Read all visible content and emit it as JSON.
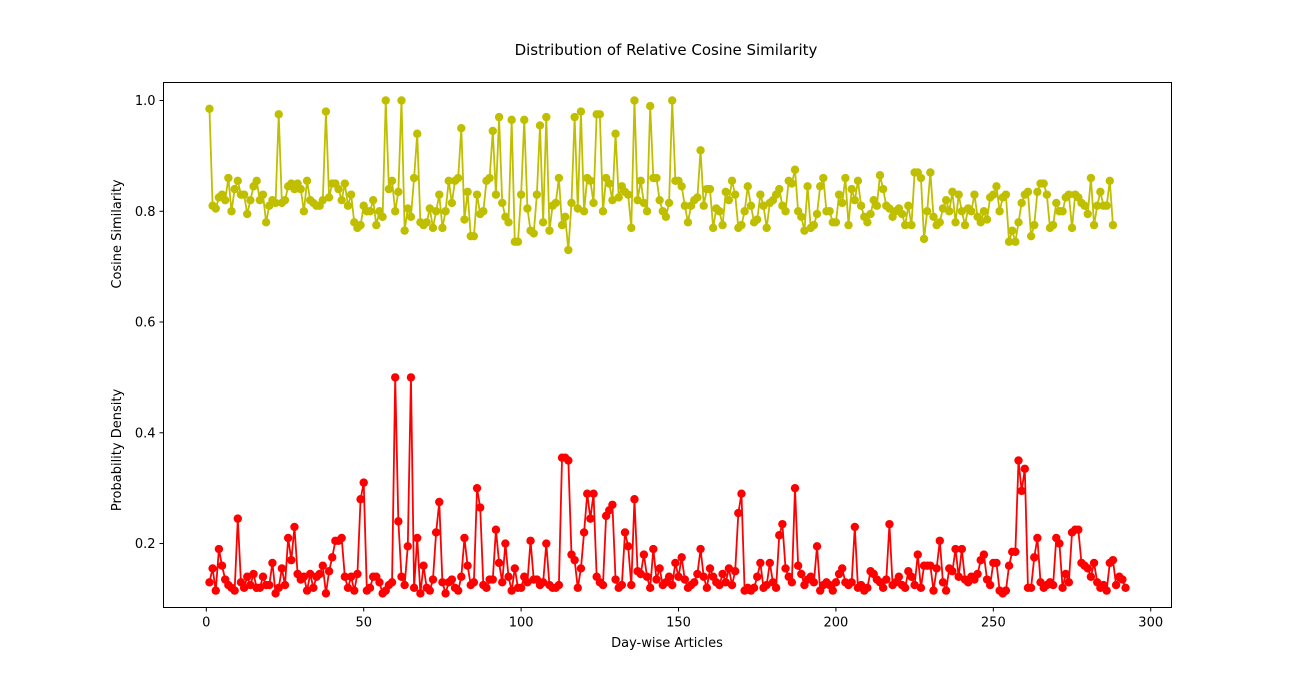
{
  "chart_data": {
    "type": "line",
    "title": "Distribution of Relative Cosine Similarity",
    "xlabel": "Day-wise Articles",
    "ylabel_upper": "Cosine Similarity",
    "ylabel_lower": "Probability Density",
    "xlim": [
      -13.6,
      306.6
    ],
    "ylim": [
      0.0845,
      1.0325
    ],
    "xticks": [
      {
        "value": 0,
        "label": "0"
      },
      {
        "value": 50,
        "label": "50"
      },
      {
        "value": 100,
        "label": "100"
      },
      {
        "value": 150,
        "label": "150"
      },
      {
        "value": 200,
        "label": "200"
      },
      {
        "value": 250,
        "label": "250"
      },
      {
        "value": 300,
        "label": "300"
      }
    ],
    "yticks": [
      {
        "value": 0.2,
        "label": "0.2"
      },
      {
        "value": 0.4,
        "label": "0.4"
      },
      {
        "value": 0.6,
        "label": "0.6"
      },
      {
        "value": 0.8,
        "label": "0.8"
      },
      {
        "value": 1.0,
        "label": "1.0"
      }
    ],
    "grid": false,
    "series": [
      {
        "role": "cosine",
        "color": "#bfbf00",
        "marker": "circle",
        "x_start": 1,
        "values": [
          0.985,
          0.81,
          0.805,
          0.825,
          0.83,
          0.82,
          0.86,
          0.8,
          0.84,
          0.855,
          0.83,
          0.83,
          0.795,
          0.82,
          0.845,
          0.855,
          0.82,
          0.83,
          0.78,
          0.81,
          0.82,
          0.815,
          0.975,
          0.815,
          0.82,
          0.845,
          0.85,
          0.84,
          0.85,
          0.84,
          0.8,
          0.855,
          0.82,
          0.815,
          0.81,
          0.81,
          0.82,
          0.98,
          0.825,
          0.85,
          0.85,
          0.84,
          0.82,
          0.85,
          0.81,
          0.83,
          0.78,
          0.77,
          0.775,
          0.81,
          0.8,
          0.8,
          0.82,
          0.775,
          0.8,
          0.79,
          1.0,
          0.84,
          0.855,
          0.8,
          0.835,
          1.0,
          0.765,
          0.805,
          0.79,
          0.86,
          0.94,
          0.78,
          0.775,
          0.78,
          0.805,
          0.77,
          0.8,
          0.83,
          0.77,
          0.8,
          0.855,
          0.815,
          0.855,
          0.86,
          0.95,
          0.785,
          0.835,
          0.755,
          0.755,
          0.83,
          0.795,
          0.8,
          0.855,
          0.86,
          0.945,
          0.83,
          0.97,
          0.815,
          0.79,
          0.78,
          0.965,
          0.745,
          0.745,
          0.83,
          0.965,
          0.805,
          0.765,
          0.76,
          0.83,
          0.955,
          0.78,
          0.97,
          0.765,
          0.81,
          0.815,
          0.86,
          0.775,
          0.79,
          0.73,
          0.815,
          0.97,
          0.805,
          0.98,
          0.8,
          0.86,
          0.855,
          0.815,
          0.975,
          0.975,
          0.8,
          0.86,
          0.85,
          0.82,
          0.94,
          0.825,
          0.845,
          0.835,
          0.83,
          0.77,
          1.0,
          0.82,
          0.855,
          0.815,
          0.8,
          0.99,
          0.86,
          0.86,
          0.82,
          0.8,
          0.79,
          0.815,
          1.0,
          0.855,
          0.855,
          0.845,
          0.81,
          0.78,
          0.81,
          0.82,
          0.825,
          0.91,
          0.81,
          0.84,
          0.84,
          0.77,
          0.805,
          0.8,
          0.775,
          0.835,
          0.82,
          0.855,
          0.83,
          0.77,
          0.775,
          0.8,
          0.845,
          0.81,
          0.78,
          0.785,
          0.83,
          0.81,
          0.77,
          0.815,
          0.82,
          0.83,
          0.84,
          0.81,
          0.8,
          0.855,
          0.85,
          0.875,
          0.8,
          0.79,
          0.765,
          0.845,
          0.77,
          0.775,
          0.795,
          0.845,
          0.86,
          0.8,
          0.8,
          0.78,
          0.78,
          0.83,
          0.815,
          0.86,
          0.775,
          0.84,
          0.82,
          0.855,
          0.81,
          0.79,
          0.78,
          0.795,
          0.82,
          0.81,
          0.865,
          0.84,
          0.81,
          0.805,
          0.79,
          0.8,
          0.805,
          0.795,
          0.775,
          0.81,
          0.775,
          0.87,
          0.87,
          0.86,
          0.75,
          0.8,
          0.87,
          0.79,
          0.775,
          0.78,
          0.805,
          0.82,
          0.8,
          0.835,
          0.78,
          0.83,
          0.8,
          0.775,
          0.805,
          0.8,
          0.83,
          0.79,
          0.78,
          0.8,
          0.785,
          0.825,
          0.83,
          0.845,
          0.8,
          0.825,
          0.83,
          0.745,
          0.765,
          0.745,
          0.78,
          0.815,
          0.83,
          0.835,
          0.755,
          0.775,
          0.835,
          0.85,
          0.85,
          0.83,
          0.77,
          0.775,
          0.815,
          0.8,
          0.8,
          0.825,
          0.83,
          0.77,
          0.83,
          0.825,
          0.815,
          0.81,
          0.795,
          0.86,
          0.775,
          0.81,
          0.835,
          0.81,
          0.81,
          0.855,
          0.775
        ]
      },
      {
        "role": "density",
        "color": "#ff0000",
        "marker": "circle",
        "x_start": 1,
        "values": [
          0.13,
          0.155,
          0.115,
          0.19,
          0.16,
          0.135,
          0.125,
          0.12,
          0.115,
          0.245,
          0.13,
          0.12,
          0.14,
          0.125,
          0.145,
          0.12,
          0.12,
          0.14,
          0.125,
          0.125,
          0.165,
          0.11,
          0.12,
          0.155,
          0.125,
          0.21,
          0.17,
          0.23,
          0.145,
          0.135,
          0.14,
          0.115,
          0.145,
          0.12,
          0.14,
          0.145,
          0.16,
          0.11,
          0.15,
          0.175,
          0.205,
          0.205,
          0.21,
          0.14,
          0.12,
          0.14,
          0.115,
          0.145,
          0.28,
          0.31,
          0.115,
          0.12,
          0.14,
          0.14,
          0.13,
          0.11,
          0.115,
          0.125,
          0.13,
          0.5,
          0.24,
          0.14,
          0.125,
          0.195,
          0.5,
          0.12,
          0.21,
          0.11,
          0.16,
          0.12,
          0.115,
          0.135,
          0.22,
          0.275,
          0.13,
          0.11,
          0.13,
          0.135,
          0.12,
          0.115,
          0.14,
          0.21,
          0.16,
          0.125,
          0.13,
          0.3,
          0.265,
          0.125,
          0.12,
          0.135,
          0.135,
          0.225,
          0.165,
          0.13,
          0.2,
          0.14,
          0.115,
          0.155,
          0.12,
          0.12,
          0.14,
          0.13,
          0.205,
          0.135,
          0.135,
          0.125,
          0.13,
          0.2,
          0.125,
          0.12,
          0.12,
          0.125,
          0.355,
          0.355,
          0.35,
          0.18,
          0.17,
          0.12,
          0.155,
          0.22,
          0.29,
          0.245,
          0.29,
          0.14,
          0.13,
          0.125,
          0.25,
          0.26,
          0.27,
          0.135,
          0.12,
          0.125,
          0.22,
          0.195,
          0.125,
          0.28,
          0.15,
          0.145,
          0.18,
          0.14,
          0.12,
          0.19,
          0.135,
          0.155,
          0.125,
          0.13,
          0.14,
          0.125,
          0.165,
          0.14,
          0.175,
          0.135,
          0.12,
          0.125,
          0.13,
          0.145,
          0.19,
          0.14,
          0.12,
          0.155,
          0.14,
          0.13,
          0.125,
          0.145,
          0.13,
          0.155,
          0.125,
          0.15,
          0.255,
          0.29,
          0.115,
          0.12,
          0.115,
          0.12,
          0.14,
          0.165,
          0.12,
          0.125,
          0.165,
          0.13,
          0.12,
          0.215,
          0.235,
          0.155,
          0.14,
          0.13,
          0.3,
          0.16,
          0.145,
          0.125,
          0.135,
          0.14,
          0.13,
          0.195,
          0.115,
          0.125,
          0.13,
          0.125,
          0.115,
          0.13,
          0.145,
          0.155,
          0.13,
          0.125,
          0.13,
          0.23,
          0.12,
          0.125,
          0.115,
          0.12,
          0.15,
          0.145,
          0.135,
          0.13,
          0.12,
          0.135,
          0.235,
          0.125,
          0.13,
          0.14,
          0.125,
          0.12,
          0.15,
          0.14,
          0.125,
          0.18,
          0.12,
          0.16,
          0.16,
          0.16,
          0.115,
          0.155,
          0.205,
          0.13,
          0.115,
          0.155,
          0.15,
          0.19,
          0.14,
          0.19,
          0.135,
          0.13,
          0.14,
          0.135,
          0.145,
          0.17,
          0.18,
          0.135,
          0.125,
          0.165,
          0.165,
          0.115,
          0.11,
          0.115,
          0.16,
          0.185,
          0.185,
          0.35,
          0.295,
          0.335,
          0.12,
          0.12,
          0.175,
          0.21,
          0.13,
          0.12,
          0.125,
          0.13,
          0.125,
          0.21,
          0.2,
          0.12,
          0.145,
          0.13,
          0.22,
          0.225,
          0.225,
          0.165,
          0.16,
          0.155,
          0.14,
          0.165,
          0.13,
          0.12,
          0.125,
          0.115,
          0.165,
          0.17,
          0.125,
          0.14,
          0.135,
          0.12
        ]
      }
    ]
  }
}
